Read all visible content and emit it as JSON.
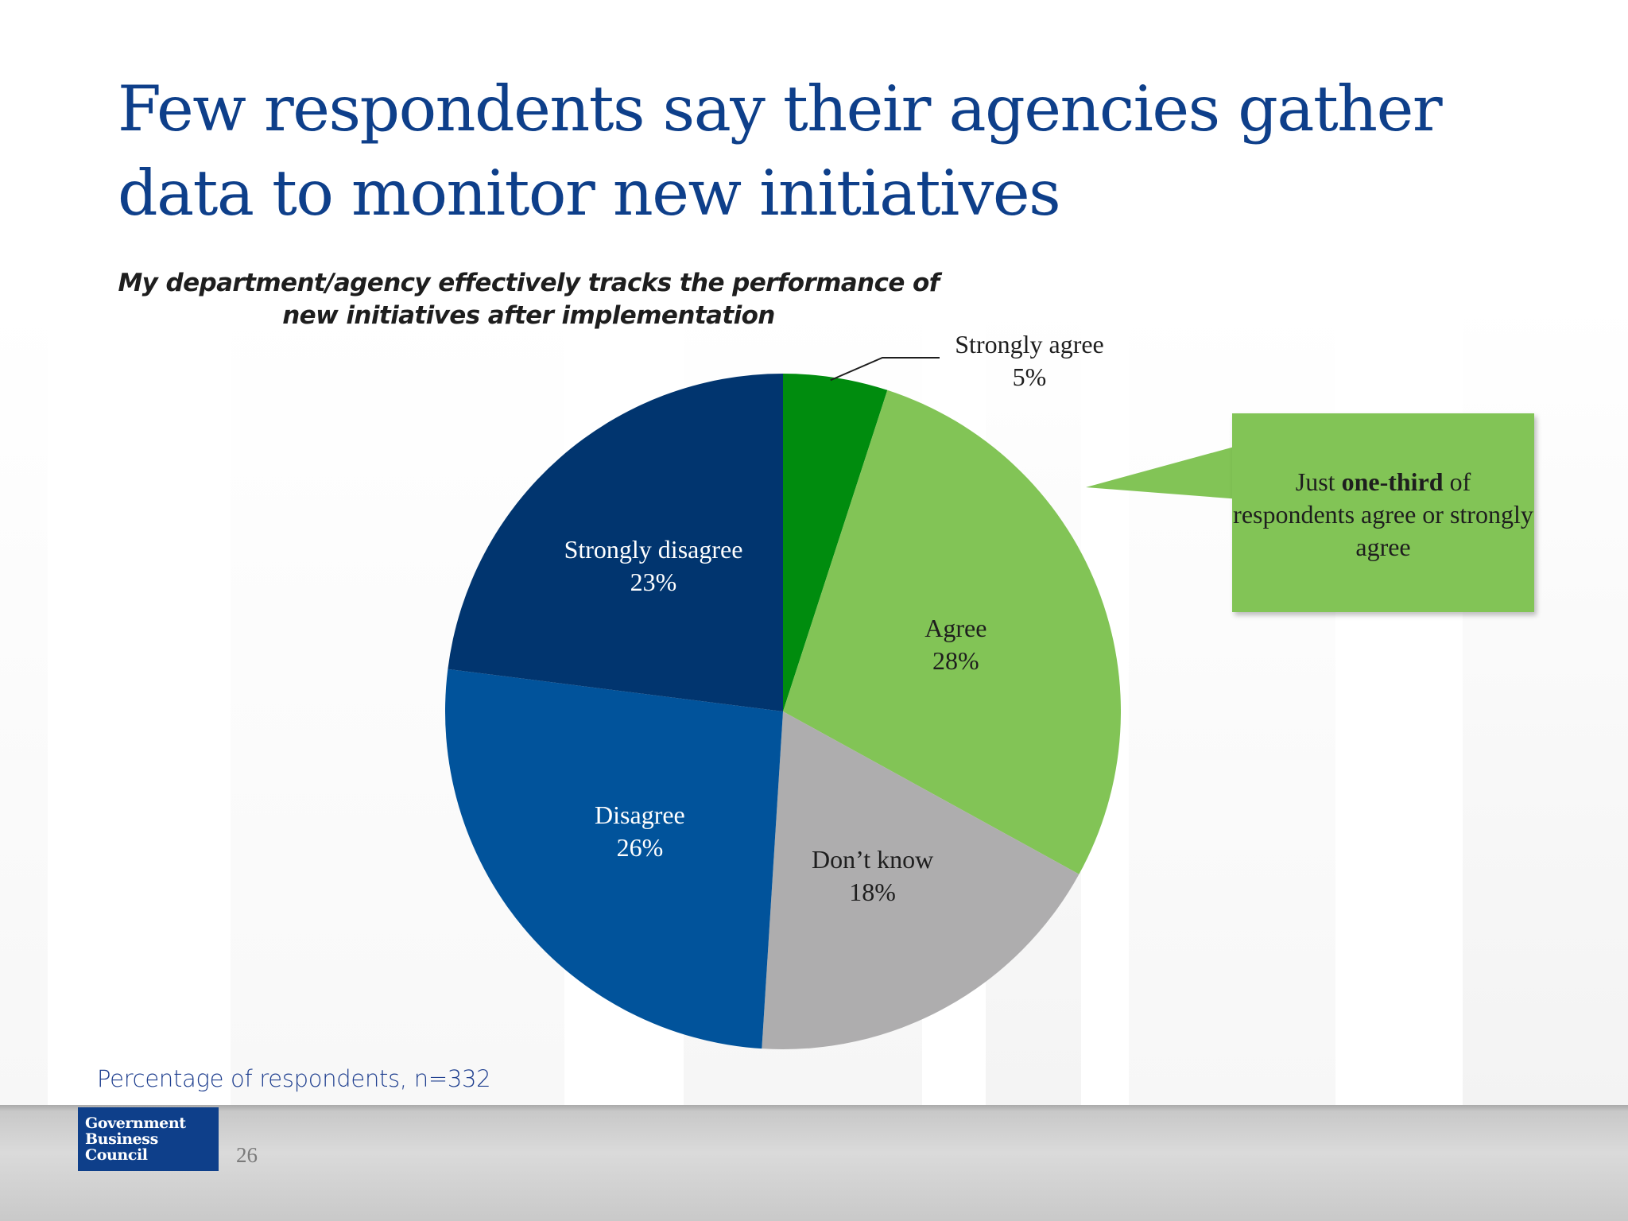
{
  "slide": {
    "title": "Few respondents say their agencies gather data to monitor new initiatives",
    "footnote": "Percentage of respondents, n=332",
    "page_number": "26"
  },
  "logo": {
    "lines": [
      "Government",
      "Business",
      "Council"
    ],
    "color": "#0e3f8a"
  },
  "callout": {
    "text_before": "Just ",
    "text_bold": "one-third",
    "text_after": " of respondents agree or strongly agree",
    "color": "#82c456"
  },
  "chart_data": {
    "type": "pie",
    "title": "My department/agency effectively tracks the performance of new initiatives  after implementation",
    "start": "12 o'clock",
    "direction": "clockwise",
    "slices": [
      {
        "label": "Strongly agree",
        "value": 5,
        "value_label": "5%",
        "color": "#008c0e",
        "label_color": "#1e1e1e"
      },
      {
        "label": "Agree",
        "value": 28,
        "value_label": "28%",
        "color": "#82c456",
        "label_color": "#1e1e1e"
      },
      {
        "label": "Don’t know",
        "value": 18,
        "value_label": "18%",
        "color": "#aeadae",
        "label_color": "#1e1e1e"
      },
      {
        "label": "Disagree",
        "value": 26,
        "value_label": "26%",
        "color": "#01539b",
        "label_color": "#ffffff"
      },
      {
        "label": "Strongly disagree",
        "value": 23,
        "value_label": "23%",
        "color": "#01356f",
        "label_color": "#ffffff"
      }
    ]
  }
}
